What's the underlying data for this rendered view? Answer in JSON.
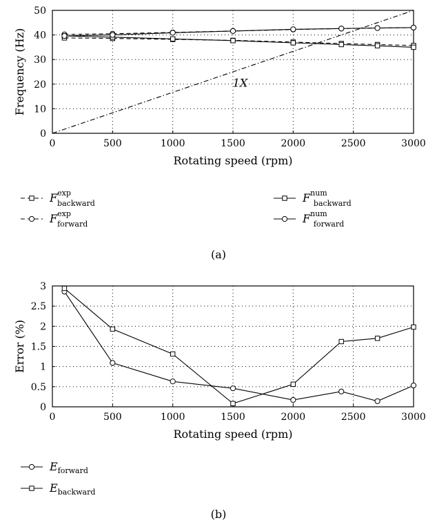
{
  "chart_data": [
    {
      "type": "line",
      "panel_label": "(a)",
      "xlabel": "Rotating speed (rpm)",
      "ylabel": "Frequency (Hz)",
      "xlim": [
        0,
        3000
      ],
      "ylim": [
        0,
        50
      ],
      "xticks": [
        0,
        500,
        1000,
        1500,
        2000,
        2500,
        3000
      ],
      "yticks": [
        0,
        10,
        20,
        30,
        40,
        50
      ],
      "grid": true,
      "legend_position": "below",
      "annotation": {
        "text": "1X",
        "x": 1560,
        "y": 19
      },
      "x": [
        100,
        500,
        1000,
        1500,
        2000,
        2400,
        2700,
        3000
      ],
      "series": [
        {
          "key": "exp_backward",
          "name_base": "F",
          "name_sup": "exp",
          "name_sub": "backward",
          "style": "dashed",
          "marker": "square",
          "values": [
            38.8,
            38.6,
            38.2,
            37.8,
            37.1,
            36.5,
            36.1,
            35.7
          ]
        },
        {
          "key": "exp_forward",
          "name_base": "F",
          "name_sup": "exp",
          "name_sub": "forward",
          "style": "dashed",
          "marker": "circle",
          "values": [
            40.2,
            40.5,
            41.0,
            41.6,
            42.2,
            42.6,
            42.8,
            43.0
          ]
        },
        {
          "key": "num_backward",
          "name_base": "F",
          "name_sup": "num",
          "name_sub": "backward",
          "style": "solid",
          "marker": "square",
          "values": [
            39.6,
            39.1,
            38.4,
            37.7,
            36.8,
            36.1,
            35.6,
            35.0
          ]
        },
        {
          "key": "num_forward",
          "name_base": "F",
          "name_sup": "num",
          "name_sub": "forward",
          "style": "solid",
          "marker": "circle",
          "values": [
            39.6,
            40.0,
            40.9,
            41.6,
            42.3,
            42.6,
            42.8,
            43.0
          ]
        },
        {
          "key": "one_x",
          "name_base": "1X",
          "style": "dashdot",
          "marker": "none",
          "x": [
            0,
            3000
          ],
          "values": [
            0,
            50
          ]
        }
      ]
    },
    {
      "type": "line",
      "panel_label": "(b)",
      "xlabel": "Rotating speed (rpm)",
      "ylabel": "Error (%)",
      "xlim": [
        0,
        3000
      ],
      "ylim": [
        0,
        3
      ],
      "xticks": [
        0,
        500,
        1000,
        1500,
        2000,
        2500,
        3000
      ],
      "yticks": [
        0,
        0.5,
        1,
        1.5,
        2,
        2.5,
        3
      ],
      "grid": true,
      "legend_position": "below-left",
      "x": [
        100,
        500,
        1000,
        1500,
        2000,
        2400,
        2700,
        3000
      ],
      "series": [
        {
          "key": "e_forward",
          "name_base": "E",
          "name_sub": "forward",
          "style": "solid",
          "marker": "circle",
          "values": [
            2.86,
            1.09,
            0.63,
            0.46,
            0.17,
            0.38,
            0.14,
            0.53
          ]
        },
        {
          "key": "e_backward",
          "name_base": "E",
          "name_sub": "backward",
          "style": "solid",
          "marker": "square",
          "values": [
            2.94,
            1.93,
            1.31,
            0.08,
            0.56,
            1.62,
            1.7,
            1.98
          ]
        }
      ]
    }
  ]
}
